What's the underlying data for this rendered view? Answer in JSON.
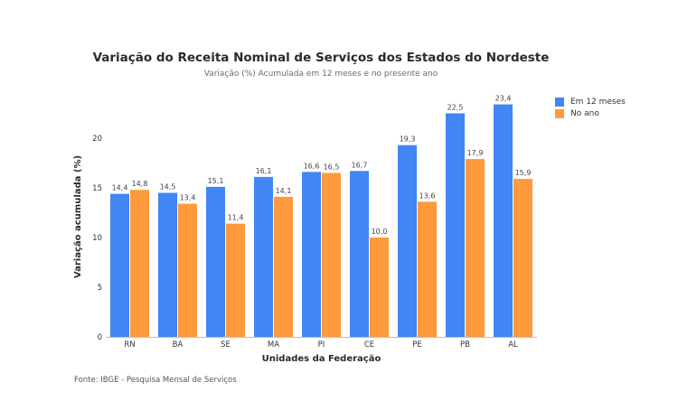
{
  "chart_data": {
    "type": "bar",
    "title": "Variação do Receita Nominal de Serviços dos Estados do Nordeste",
    "subtitle": "Variação (%) Acumulada em 12 meses e no presente ano",
    "xlabel": "Unidades da Federação",
    "ylabel": "Variação acumulada (%)",
    "ylim": [
      0,
      25
    ],
    "yticks": [
      0,
      5,
      10,
      15,
      20
    ],
    "categories": [
      "RN",
      "BA",
      "SE",
      "MA",
      "PI",
      "CE",
      "PE",
      "PB",
      "AL"
    ],
    "series": [
      {
        "name": "Em 12 meses",
        "color": "#4285f4",
        "values": [
          14.4,
          14.5,
          15.1,
          16.1,
          16.6,
          16.7,
          19.3,
          22.5,
          23.4
        ],
        "labels": [
          "14,4",
          "14,5",
          "15,1",
          "16,1",
          "16,6",
          "16,7",
          "19,3",
          "22,5",
          "23,4"
        ]
      },
      {
        "name": "No ano",
        "color": "#ff9a3c",
        "values": [
          14.8,
          13.4,
          11.4,
          14.1,
          16.5,
          10.0,
          13.6,
          17.9,
          15.9
        ],
        "labels": [
          "14,8",
          "13,4",
          "11,4",
          "14,1",
          "16,5",
          "10,0",
          "13,6",
          "17,9",
          "15,9"
        ]
      }
    ],
    "legend_position": "top-right",
    "grid": false,
    "source": "Fonte: IBGE - Pesquisa Mensal de Serviços"
  }
}
